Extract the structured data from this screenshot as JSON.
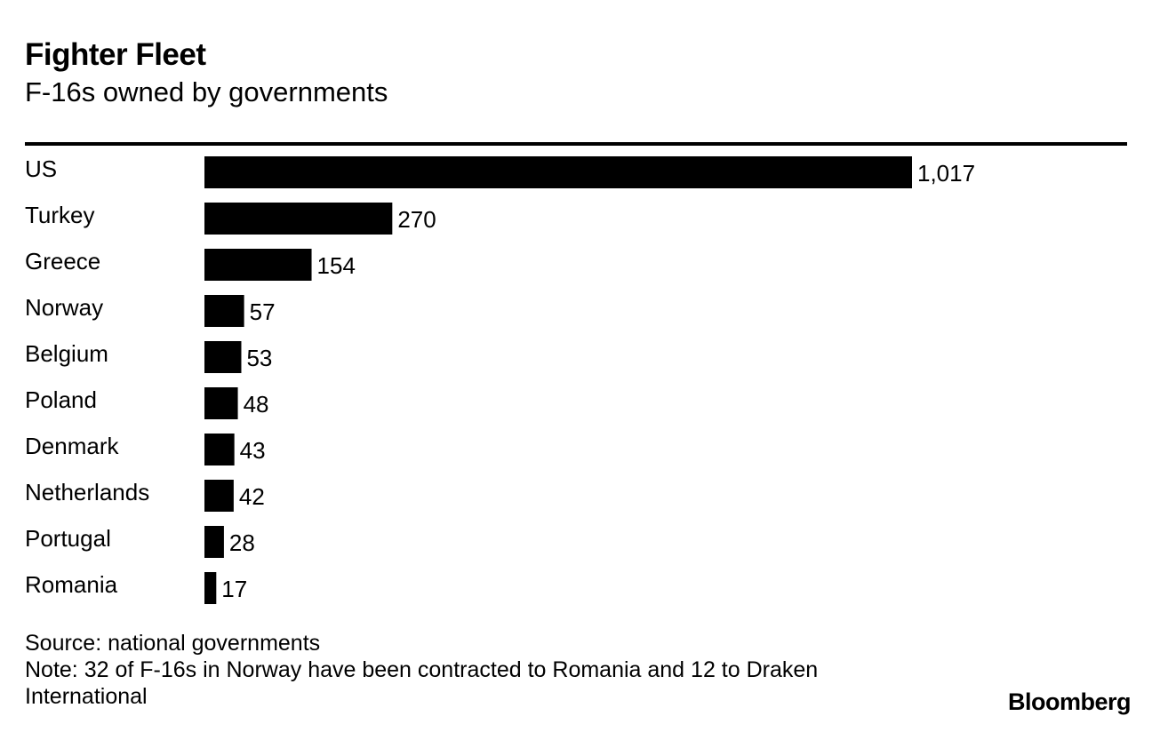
{
  "chart_data": {
    "type": "bar",
    "orientation": "horizontal",
    "title": "Fighter Fleet",
    "subtitle": "F-16s owned by governments",
    "categories": [
      "US",
      "Turkey",
      "Greece",
      "Norway",
      "Belgium",
      "Poland",
      "Denmark",
      "Netherlands",
      "Portugal",
      "Romania"
    ],
    "values": [
      1017,
      270,
      154,
      57,
      53,
      48,
      43,
      42,
      28,
      17
    ],
    "value_labels": [
      "1,017",
      "270",
      "154",
      "57",
      "53",
      "48",
      "43",
      "42",
      "28",
      "17"
    ],
    "xlabel": "",
    "ylabel": "",
    "xlim": [
      0,
      1017
    ],
    "grid": false,
    "bar_color": "#000000"
  },
  "footer": {
    "source": "Source: national governments",
    "note_line1": "Note: 32 of F-16s in Norway have been contracted to Romania and 12 to Draken",
    "note_line2": "International"
  },
  "brand": "Bloomberg"
}
